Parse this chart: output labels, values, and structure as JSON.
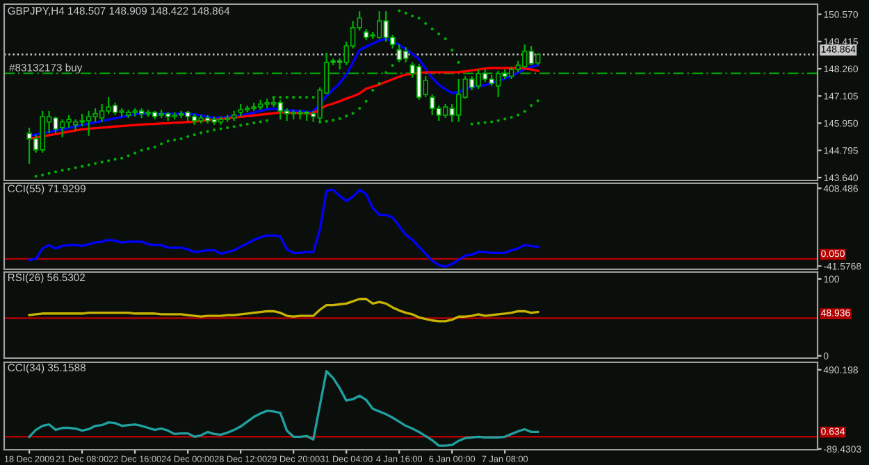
{
  "chart_data": [
    {
      "type": "candlestick",
      "title": "GBPJPY,H4 148.507 148.909 148.422 148.864",
      "color": "#00b000",
      "categories": [
        null,
        null,
        null,
        null,
        null,
        null,
        null,
        null,
        null,
        null,
        null,
        null,
        null,
        null,
        null,
        null,
        null,
        null,
        null,
        null,
        null,
        null,
        null,
        null,
        null,
        null,
        null,
        null,
        null,
        null,
        null,
        null,
        null,
        null,
        null,
        null,
        null,
        null,
        null,
        null,
        null,
        null,
        null,
        null,
        null,
        null,
        null,
        null,
        null,
        null,
        null,
        null,
        null,
        null,
        null,
        null,
        null,
        null,
        null,
        null,
        null,
        null,
        null,
        null,
        null,
        null,
        null,
        null,
        null,
        null,
        null,
        null,
        null,
        null,
        null,
        null,
        null,
        null
      ],
      "ohlc": [
        [
          145.52,
          145.76,
          144.23,
          145.29
        ],
        [
          145.29,
          145.46,
          144.7,
          144.82
        ],
        [
          144.82,
          146.47,
          144.7,
          146.23
        ],
        [
          146.0,
          146.47,
          145.52,
          146.23
        ],
        [
          146.17,
          146.23,
          145.52,
          145.7
        ],
        [
          145.76,
          146.11,
          145.35,
          146.0
        ],
        [
          146.0,
          146.29,
          145.76,
          146.11
        ],
        [
          145.88,
          146.11,
          145.64,
          146.0
        ],
        [
          146.0,
          146.35,
          145.82,
          146.05
        ],
        [
          146.05,
          146.47,
          145.41,
          146.23
        ],
        [
          146.23,
          146.58,
          146.0,
          146.35
        ],
        [
          146.17,
          146.76,
          146.0,
          146.47
        ],
        [
          146.47,
          147.05,
          146.35,
          146.64
        ],
        [
          146.7,
          146.82,
          146.29,
          146.41
        ],
        [
          146.41,
          146.58,
          146.23,
          146.47
        ],
        [
          146.29,
          146.52,
          146.17,
          146.41
        ],
        [
          146.41,
          146.58,
          146.23,
          146.47
        ],
        [
          146.47,
          146.58,
          146.17,
          146.35
        ],
        [
          146.35,
          146.52,
          146.23,
          146.41
        ],
        [
          146.41,
          146.47,
          146.11,
          146.23
        ],
        [
          146.29,
          146.52,
          146.17,
          146.35
        ],
        [
          146.35,
          146.41,
          146.05,
          146.23
        ],
        [
          146.23,
          146.41,
          146.11,
          146.29
        ],
        [
          146.29,
          146.47,
          146.17,
          146.35
        ],
        [
          146.41,
          146.47,
          146.05,
          146.23
        ],
        [
          146.23,
          146.35,
          145.88,
          146.05
        ],
        [
          146.05,
          146.29,
          145.94,
          146.17
        ],
        [
          146.17,
          146.29,
          145.94,
          146.05
        ],
        [
          146.11,
          146.23,
          145.88,
          146.0
        ],
        [
          146.0,
          146.23,
          145.88,
          146.11
        ],
        [
          146.11,
          146.29,
          146.0,
          146.17
        ],
        [
          146.17,
          146.47,
          146.05,
          146.29
        ],
        [
          146.41,
          146.76,
          146.23,
          146.52
        ],
        [
          146.52,
          146.7,
          146.41,
          146.58
        ],
        [
          146.58,
          146.82,
          146.47,
          146.64
        ],
        [
          146.64,
          146.94,
          146.52,
          146.76
        ],
        [
          146.76,
          146.99,
          146.58,
          146.82
        ],
        [
          146.76,
          147.05,
          146.64,
          146.82
        ],
        [
          146.82,
          146.94,
          146.11,
          146.47
        ],
        [
          146.47,
          146.58,
          146.05,
          146.35
        ],
        [
          146.35,
          146.52,
          146.11,
          146.41
        ],
        [
          146.35,
          146.52,
          146.11,
          146.41
        ],
        [
          146.41,
          146.47,
          146.05,
          146.35
        ],
        [
          146.35,
          146.47,
          146.0,
          146.23
        ],
        [
          146.17,
          147.47,
          146.0,
          147.35
        ],
        [
          147.23,
          148.94,
          147.17,
          148.53
        ],
        [
          148.59,
          148.7,
          148.41,
          148.53
        ],
        [
          148.59,
          148.7,
          148.23,
          148.53
        ],
        [
          148.53,
          149.41,
          148.41,
          149.23
        ],
        [
          149.23,
          150.29,
          149.12,
          150.0
        ],
        [
          150.0,
          150.7,
          149.88,
          150.41
        ],
        [
          149.82,
          149.94,
          149.47,
          149.59
        ],
        [
          149.65,
          149.82,
          149.53,
          149.7
        ],
        [
          149.59,
          150.7,
          149.53,
          150.29
        ],
        [
          150.29,
          150.7,
          149.41,
          149.59
        ],
        [
          149.59,
          149.7,
          149.12,
          149.29
        ],
        [
          149.06,
          149.29,
          148.53,
          148.64
        ],
        [
          149.0,
          149.17,
          148.53,
          148.7
        ],
        [
          148.41,
          148.53,
          147.88,
          148.06
        ],
        [
          148.35,
          148.47,
          146.94,
          147.05
        ],
        [
          147.17,
          147.94,
          147.05,
          147.76
        ],
        [
          147.05,
          147.17,
          146.29,
          146.58
        ],
        [
          146.58,
          146.7,
          146.05,
          146.29
        ],
        [
          146.29,
          146.76,
          146.17,
          146.64
        ],
        [
          146.58,
          146.76,
          146.0,
          146.29
        ],
        [
          146.29,
          147.82,
          146.0,
          147.17
        ],
        [
          147.05,
          147.94,
          146.99,
          147.82
        ],
        [
          147.82,
          147.94,
          147.35,
          147.47
        ],
        [
          147.53,
          148.23,
          147.41,
          148.06
        ],
        [
          148.06,
          148.23,
          147.7,
          147.82
        ],
        [
          147.82,
          148.0,
          147.53,
          147.64
        ],
        [
          147.53,
          148.17,
          147.05,
          148.06
        ],
        [
          148.06,
          148.23,
          147.82,
          147.94
        ],
        [
          147.94,
          148.35,
          147.82,
          148.23
        ],
        [
          148.23,
          148.59,
          148.11,
          148.41
        ],
        [
          148.35,
          149.29,
          148.29,
          149.0
        ],
        [
          149.0,
          149.23,
          148.41,
          148.47
        ],
        [
          148.507,
          148.909,
          148.422,
          148.864
        ]
      ],
      "series": [
        {
          "type": "line",
          "color": "#0000ff",
          "values": [
            145.41,
            145.47,
            145.52,
            145.58,
            145.64,
            145.69,
            145.75,
            145.81,
            145.87,
            145.93,
            145.98,
            146.04,
            146.1,
            146.16,
            146.22,
            146.28,
            146.34,
            146.35,
            146.35,
            146.35,
            146.35,
            146.35,
            146.35,
            146.35,
            146.35,
            146.32,
            146.28,
            146.23,
            146.19,
            146.19,
            146.22,
            146.25,
            146.28,
            146.33,
            146.4,
            146.47,
            146.54,
            146.56,
            146.52,
            146.5,
            146.48,
            146.46,
            146.43,
            146.44,
            146.77,
            147.1,
            147.38,
            147.64,
            148.01,
            148.52,
            149.05,
            149.2,
            149.32,
            149.46,
            149.53,
            149.42,
            149.27,
            149.09,
            148.89,
            148.66,
            148.27,
            147.87,
            147.58,
            147.39,
            147.23,
            147.26,
            147.41,
            147.49,
            147.53,
            147.56,
            147.66,
            147.73,
            147.84,
            147.95,
            148.1,
            148.24,
            148.34,
            148.41
          ]
        },
        {
          "type": "line",
          "color": "#ff0000",
          "values": [
            145.29,
            145.34,
            145.39,
            145.44,
            145.49,
            145.54,
            145.59,
            145.64,
            145.69,
            145.72,
            145.74,
            145.76,
            145.78,
            145.81,
            145.83,
            145.85,
            145.87,
            145.89,
            145.91,
            145.92,
            145.94,
            145.95,
            145.97,
            145.98,
            146.0,
            146.02,
            146.05,
            146.08,
            146.1,
            146.13,
            146.16,
            146.19,
            146.22,
            146.25,
            146.28,
            146.31,
            146.34,
            146.37,
            146.41,
            146.4,
            146.39,
            146.38,
            146.36,
            146.37,
            146.54,
            146.7,
            146.78,
            146.88,
            146.99,
            147.09,
            147.21,
            147.41,
            147.5,
            147.59,
            147.7,
            147.81,
            147.92,
            148.01,
            148.05,
            148.08,
            148.11,
            148.11,
            148.11,
            148.11,
            148.11,
            148.12,
            148.15,
            148.19,
            148.23,
            148.27,
            148.29,
            148.29,
            148.29,
            148.29,
            148.29,
            148.27,
            148.23,
            148.17
          ]
        },
        {
          "type": "scatter",
          "color": "#00b000",
          "marker": "circle",
          "values": [
            null,
            143.7,
            143.75,
            143.82,
            143.89,
            143.95,
            144.0,
            144.06,
            144.12,
            144.18,
            144.24,
            144.3,
            144.36,
            144.42,
            144.47,
            144.57,
            144.68,
            144.8,
            144.87,
            144.94,
            145.07,
            145.19,
            145.24,
            145.29,
            145.38,
            145.46,
            145.54,
            145.6,
            145.66,
            145.71,
            145.76,
            145.81,
            145.86,
            145.91,
            145.96,
            146.01,
            146.06,
            147.05,
            147.05,
            147.05,
            147.05,
            147.05,
            147.05,
            147.05,
            146.0,
            146.03,
            146.08,
            146.15,
            146.25,
            146.37,
            146.58,
            146.88,
            147.35,
            147.64,
            148.1,
            148.4,
            150.72,
            150.62,
            150.5,
            150.41,
            150.18,
            149.95,
            149.74,
            149.53,
            149.05,
            148.53,
            null,
            145.92,
            145.95,
            145.98,
            146.01,
            146.06,
            146.13,
            146.2,
            146.3,
            146.45,
            146.7,
            146.9
          ]
        }
      ],
      "ylim": [
        143.52,
        151.0
      ],
      "yticks": [
        {
          "value": 150.57,
          "label": "150.570"
        },
        149.415,
        {
          "value": 148.26,
          "label": "148.260"
        },
        147.105,
        {
          "value": 145.95,
          "label": "145.950"
        },
        144.795,
        {
          "value": 143.64,
          "label": "143.640"
        }
      ],
      "ref_lines": [
        {
          "axis": "y",
          "value": 148.864,
          "label": "148.864",
          "color": "#c8c8c8",
          "line_style": "dotted"
        },
        {
          "axis": "y",
          "value": 148.06,
          "label": "#83132173 buy",
          "color": "#00a000",
          "line_style": "dashed"
        }
      ],
      "tick_labels": "y"
    },
    {
      "type": "line",
      "title": "CCI(55) 71.9299",
      "categories": [
        null,
        null,
        null,
        null,
        null,
        null,
        null,
        null,
        null,
        null,
        null,
        null,
        null,
        null,
        null,
        null,
        null,
        null,
        null,
        null,
        null,
        null,
        null,
        null,
        null,
        null,
        null,
        null,
        null,
        null,
        null,
        null,
        null,
        null,
        null,
        null,
        null,
        null,
        null,
        null,
        null,
        null,
        null,
        null,
        null,
        null,
        null,
        null,
        null,
        null,
        null,
        null,
        null,
        null,
        null,
        null,
        null,
        null,
        null,
        null,
        null,
        null,
        null,
        null,
        null,
        null,
        null,
        null,
        null,
        null,
        null,
        null,
        null,
        null,
        null,
        null,
        null,
        null
      ],
      "series": [
        {
          "color": "#0000ff",
          "values": [
            -5,
            0,
            60,
            80,
            60,
            75,
            80,
            80,
            75,
            85,
            95,
            100,
            110,
            105,
            95,
            100,
            100,
            100,
            85,
            80,
            80,
            65,
            65,
            65,
            55,
            40,
            45,
            50,
            50,
            30,
            40,
            50,
            70,
            90,
            110,
            125,
            135,
            135,
            130,
            55,
            35,
            35,
            40,
            40,
            170,
            395,
            400,
            365,
            335,
            360,
            400,
            375,
            295,
            255,
            255,
            240,
            190,
            140,
            110,
            70,
            30,
            -10,
            -35,
            -45,
            -30,
            -5,
            20,
            25,
            40,
            40,
            35,
            35,
            35,
            50,
            60,
            80,
            75,
            70
          ]
        }
      ],
      "ylim": [
        -60,
        438
      ],
      "yticks": [
        408.486,
        -41.5768
      ],
      "ref_lines": [
        {
          "axis": "y",
          "value": 0.05,
          "label": "0.050",
          "color": "#b00000",
          "line_style": "solid"
        }
      ],
      "tick_labels": "y"
    },
    {
      "type": "line",
      "title": "RSI(26) 56.5302",
      "categories": [
        null,
        null,
        null,
        null,
        null,
        null,
        null,
        null,
        null,
        null,
        null,
        null,
        null,
        null,
        null,
        null,
        null,
        null,
        null,
        null,
        null,
        null,
        null,
        null,
        null,
        null,
        null,
        null,
        null,
        null,
        null,
        null,
        null,
        null,
        null,
        null,
        null,
        null,
        null,
        null,
        null,
        null,
        null,
        null,
        null,
        null,
        null,
        null,
        null,
        null,
        null,
        null,
        null,
        null,
        null,
        null,
        null,
        null,
        null,
        null,
        null,
        null,
        null,
        null,
        null,
        null,
        null,
        null,
        null,
        null,
        null,
        null,
        null,
        null,
        null,
        null,
        null,
        null
      ],
      "series": [
        {
          "color": "#c8b400",
          "values": [
            53,
            54,
            55,
            55,
            55,
            55,
            55,
            55,
            55,
            56,
            56,
            56,
            56,
            56,
            56,
            56,
            55,
            55,
            55,
            55,
            54,
            54,
            54,
            54,
            53,
            52,
            51,
            52,
            52,
            52,
            53,
            53,
            54,
            55,
            56,
            57,
            58,
            58,
            56,
            52,
            51,
            52,
            52,
            52,
            60,
            66,
            66,
            67,
            68,
            71,
            74,
            74,
            68,
            70,
            68,
            63,
            59,
            56,
            54,
            50,
            48,
            46,
            45,
            45,
            47,
            51,
            51,
            52,
            54,
            52,
            53,
            54,
            55,
            56,
            58,
            58,
            56,
            57
          ]
        }
      ],
      "ylim": [
        -3,
        109
      ],
      "yticks": [
        100,
        0
      ],
      "ref_lines": [
        {
          "axis": "y",
          "value": 48.936,
          "label": "48.936",
          "color": "#b00000",
          "line_style": "solid"
        }
      ],
      "tick_labels": "y"
    },
    {
      "type": "line",
      "title": "CCI(34) 35.1588",
      "categories": [
        "18 Dec 2009",
        null,
        null,
        null,
        null,
        null,
        null,
        null,
        "21 Dec 08:00",
        null,
        null,
        null,
        null,
        null,
        null,
        null,
        "22 Dec 16:00",
        null,
        null,
        null,
        null,
        null,
        null,
        null,
        "24 Dec 00:00",
        null,
        null,
        null,
        null,
        null,
        null,
        null,
        "28 Dec 12:00",
        null,
        null,
        null,
        null,
        null,
        null,
        null,
        "29 Dec 20:00",
        null,
        null,
        null,
        null,
        null,
        null,
        null,
        "31 Dec 04:00",
        null,
        null,
        null,
        null,
        null,
        null,
        null,
        "4 Jan 16:00",
        null,
        null,
        null,
        null,
        null,
        null,
        null,
        "6 Jan 00:00",
        null,
        null,
        null,
        null,
        null,
        null,
        null,
        "7 Jan 08:00",
        null,
        null,
        null,
        null,
        null
      ],
      "series": [
        {
          "color": "#20a0a0",
          "values": [
            0,
            50,
            80,
            90,
            50,
            65,
            65,
            60,
            45,
            55,
            80,
            85,
            105,
            100,
            80,
            85,
            90,
            80,
            65,
            50,
            60,
            45,
            20,
            25,
            25,
            0,
            10,
            35,
            20,
            15,
            30,
            50,
            75,
            110,
            145,
            170,
            190,
            185,
            175,
            45,
            0,
            0,
            5,
            -20,
            230,
            480,
            430,
            355,
            265,
            275,
            300,
            270,
            205,
            185,
            165,
            140,
            110,
            80,
            60,
            35,
            5,
            -25,
            -65,
            -65,
            -60,
            -30,
            -10,
            -5,
            0,
            -5,
            -5,
            -5,
            0,
            20,
            40,
            55,
            35,
            35
          ]
        }
      ],
      "ylim": [
        -95,
        545
      ],
      "yticks": [
        490.198,
        -89.4303
      ],
      "ref_lines": [
        {
          "axis": "y",
          "value": 0.634,
          "label": "0.634",
          "color": "#b00000",
          "line_style": "solid"
        }
      ]
    }
  ]
}
